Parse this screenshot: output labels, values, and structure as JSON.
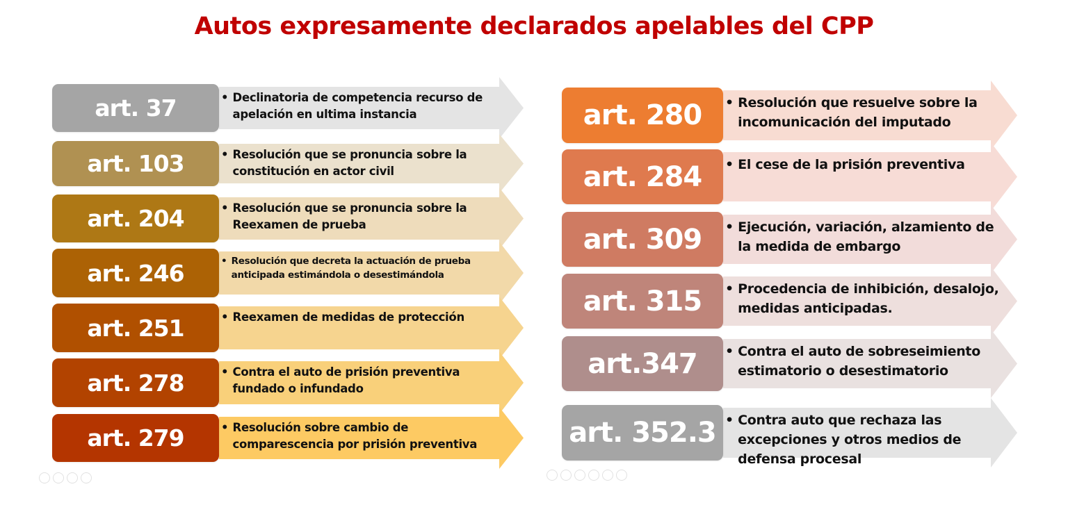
{
  "title": "Autos expresamente declarados apelables del CPP",
  "title_color": "#c00000",
  "left_column": [
    {
      "article": "art. 37",
      "description": "Declinatoria de competencia recurso de\napelación en ultima instancia",
      "box_color": "#a5a5a5",
      "arrow_color": "#e4e4e4"
    },
    {
      "article": "art. 103",
      "description": "Resolución que se pronuncia sobre la\nconstitución en actor civil",
      "box_color": "#b09152",
      "arrow_color": "#ebe1cd"
    },
    {
      "article": "art. 204",
      "description": "Resolución que se pronuncia sobre la\nReexamen de prueba",
      "box_color": "#ae7815",
      "arrow_color": "#eedcbb"
    },
    {
      "article": "art. 246",
      "description": "Resolución que decreta la actuación de prueba\nanticipada estimándola o desestimándola",
      "box_color": "#ac6205",
      "arrow_color": "#f2d9a9"
    },
    {
      "article": "art. 251",
      "description": "Reexamen de medidas de protección",
      "box_color": "#b05000",
      "arrow_color": "#f6d48f"
    },
    {
      "article": "art. 278",
      "description": "Contra el auto de prisión preventiva\nfundado o infundado",
      "box_color": "#b24300",
      "arrow_color": "#f9d07a"
    },
    {
      "article": "art. 279",
      "description": "Resolución sobre cambio de\ncomparescencia por prisión preventiva",
      "box_color": "#b43500",
      "arrow_color": "#fdca63"
    }
  ],
  "right_column": [
    {
      "article": "art. 280",
      "description": "Resolución que resuelve sobre la\nincomunicación  del imputado",
      "box_color": "#ed7d31",
      "arrow_color": "#f8dcd2"
    },
    {
      "article": "art. 284",
      "description": "El cese de la prisión preventiva",
      "box_color": "#df7a4e",
      "arrow_color": "#f7dcd6"
    },
    {
      "article": "art. 309",
      "description": "Ejecución, variación, alzamiento de\nla medida de embargo",
      "box_color": "#cf7b62",
      "arrow_color": "#f2dcda"
    },
    {
      "article": "art. 315",
      "description": "Procedencia de inhibición, desalojo,\nmedidas anticipadas.",
      "box_color": "#bf857a",
      "arrow_color": "#eedfdd"
    },
    {
      "article": "art.347",
      "description": "Contra el auto de sobreseimiento\nestimatorio o desestimatorio",
      "box_color": "#af8e8c",
      "arrow_color": "#e9e1e0"
    },
    {
      "article": "art. 352.3",
      "description": "Contra auto que rechaza las\nexcepciones y otros medios de\ndefensa procesal",
      "box_color": "#a5a5a5",
      "arrow_color": "#e4e4e4"
    }
  ],
  "bullet": "•"
}
